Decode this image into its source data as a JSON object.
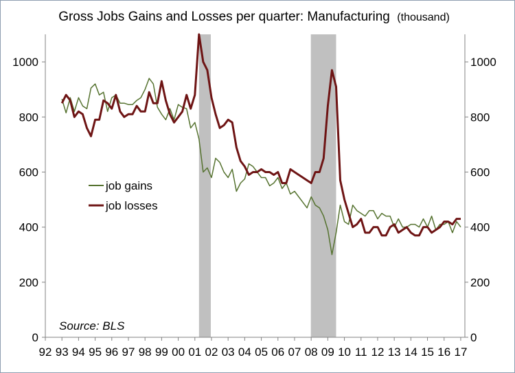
{
  "chart_data": {
    "type": "line",
    "title": "Gross Jobs Gains and Losses per quarter: Manufacturing",
    "title_unit": "(thousand)",
    "source_note": "Source: BLS",
    "x_tick_labels": [
      "92",
      "93",
      "94",
      "95",
      "96",
      "97",
      "98",
      "99",
      "00",
      "01",
      "02",
      "03",
      "04",
      "05",
      "06",
      "07",
      "08",
      "09",
      "10",
      "11",
      "12",
      "13",
      "14",
      "15",
      "16",
      "17"
    ],
    "ylim": [
      0,
      1100
    ],
    "y_ticks": [
      0,
      200,
      400,
      600,
      800,
      1000
    ],
    "y_tick_labels": [
      "0",
      "200",
      "400",
      "600",
      "800",
      "1000"
    ],
    "secondary_y_ticks": [
      0,
      200,
      400,
      600,
      800,
      1000
    ],
    "secondary_y_tick_labels": [
      "0",
      "200",
      "400",
      "600",
      "800",
      "1000"
    ],
    "recessions": [
      [
        2001.25,
        2001.96
      ],
      [
        2007.98,
        2009.5
      ]
    ],
    "legend_position": "left-middle",
    "colors": {
      "job_gains": "#55722f",
      "job_losses": "#6e1414",
      "recession": "#c0c0c0",
      "axis": "#808080"
    },
    "series": [
      {
        "name": "job gains",
        "x": [
          1993.0,
          1993.25,
          1993.5,
          1993.75,
          1994.0,
          1994.25,
          1994.5,
          1994.75,
          1995.0,
          1995.25,
          1995.5,
          1995.75,
          1996.0,
          1996.25,
          1996.5,
          1996.75,
          1997.0,
          1997.25,
          1997.5,
          1997.75,
          1998.0,
          1998.25,
          1998.5,
          1998.75,
          1999.0,
          1999.25,
          1999.5,
          1999.75,
          2000.0,
          2000.25,
          2000.5,
          2000.75,
          2001.0,
          2001.25,
          2001.5,
          2001.75,
          2002.0,
          2002.25,
          2002.5,
          2002.75,
          2003.0,
          2003.25,
          2003.5,
          2003.75,
          2004.0,
          2004.25,
          2004.5,
          2004.75,
          2005.0,
          2005.25,
          2005.5,
          2005.75,
          2006.0,
          2006.25,
          2006.5,
          2006.75,
          2007.0,
          2007.25,
          2007.5,
          2007.75,
          2008.0,
          2008.25,
          2008.5,
          2008.75,
          2009.0,
          2009.25,
          2009.5,
          2009.75,
          2010.0,
          2010.25,
          2010.5,
          2010.75,
          2011.0,
          2011.25,
          2011.5,
          2011.75,
          2012.0,
          2012.25,
          2012.5,
          2012.75,
          2013.0,
          2013.25,
          2013.5,
          2013.75,
          2014.0,
          2014.25,
          2014.5,
          2014.75,
          2015.0,
          2015.25,
          2015.5,
          2015.75,
          2016.0,
          2016.25,
          2016.5,
          2016.75,
          2017.0
        ],
        "values": [
          865,
          815,
          870,
          820,
          870,
          840,
          830,
          905,
          920,
          880,
          890,
          820,
          870,
          880,
          850,
          850,
          845,
          845,
          860,
          870,
          900,
          940,
          920,
          835,
          810,
          790,
          830,
          790,
          845,
          835,
          830,
          760,
          780,
          720,
          600,
          615,
          580,
          650,
          635,
          600,
          580,
          610,
          530,
          560,
          575,
          630,
          620,
          600,
          580,
          580,
          550,
          560,
          580,
          540,
          560,
          520,
          530,
          510,
          490,
          470,
          510,
          480,
          470,
          440,
          390,
          300,
          380,
          480,
          420,
          410,
          480,
          460,
          450,
          440,
          460,
          460,
          430,
          450,
          440,
          440,
          400,
          430,
          400,
          400,
          410,
          410,
          400,
          430,
          400,
          440,
          390,
          410,
          410,
          420,
          380,
          420,
          400
        ]
      },
      {
        "name": "job losses",
        "x": [
          1993.0,
          1993.25,
          1993.5,
          1993.75,
          1994.0,
          1994.25,
          1994.5,
          1994.75,
          1995.0,
          1995.25,
          1995.5,
          1995.75,
          1996.0,
          1996.25,
          1996.5,
          1996.75,
          1997.0,
          1997.25,
          1997.5,
          1997.75,
          1998.0,
          1998.25,
          1998.5,
          1998.75,
          1999.0,
          1999.25,
          1999.5,
          1999.75,
          2000.0,
          2000.25,
          2000.5,
          2000.75,
          2001.0,
          2001.25,
          2001.5,
          2001.75,
          2002.0,
          2002.25,
          2002.5,
          2002.75,
          2003.0,
          2003.25,
          2003.5,
          2003.75,
          2004.0,
          2004.25,
          2004.5,
          2004.75,
          2005.0,
          2005.25,
          2005.5,
          2005.75,
          2006.0,
          2006.25,
          2006.5,
          2006.75,
          2007.0,
          2007.25,
          2007.5,
          2007.75,
          2008.0,
          2008.25,
          2008.5,
          2008.75,
          2009.0,
          2009.25,
          2009.5,
          2009.75,
          2010.0,
          2010.25,
          2010.5,
          2010.75,
          2011.0,
          2011.25,
          2011.5,
          2011.75,
          2012.0,
          2012.25,
          2012.5,
          2012.75,
          2013.0,
          2013.25,
          2013.5,
          2013.75,
          2014.0,
          2014.25,
          2014.5,
          2014.75,
          2015.0,
          2015.25,
          2015.5,
          2015.75,
          2016.0,
          2016.25,
          2016.5,
          2016.75,
          2017.0
        ],
        "values": [
          850,
          880,
          860,
          800,
          820,
          810,
          760,
          730,
          790,
          790,
          860,
          850,
          830,
          880,
          820,
          800,
          810,
          810,
          840,
          820,
          820,
          890,
          850,
          850,
          930,
          860,
          810,
          780,
          800,
          820,
          880,
          830,
          880,
          1100,
          1000,
          970,
          870,
          810,
          760,
          770,
          790,
          780,
          690,
          640,
          620,
          590,
          600,
          600,
          610,
          600,
          600,
          590,
          600,
          560,
          560,
          610,
          600,
          590,
          580,
          570,
          560,
          600,
          600,
          650,
          840,
          970,
          910,
          570,
          500,
          450,
          400,
          410,
          430,
          380,
          380,
          400,
          400,
          370,
          370,
          400,
          410,
          380,
          390,
          400,
          380,
          370,
          370,
          400,
          400,
          380,
          390,
          400,
          420,
          420,
          410,
          430,
          430
        ]
      }
    ]
  }
}
